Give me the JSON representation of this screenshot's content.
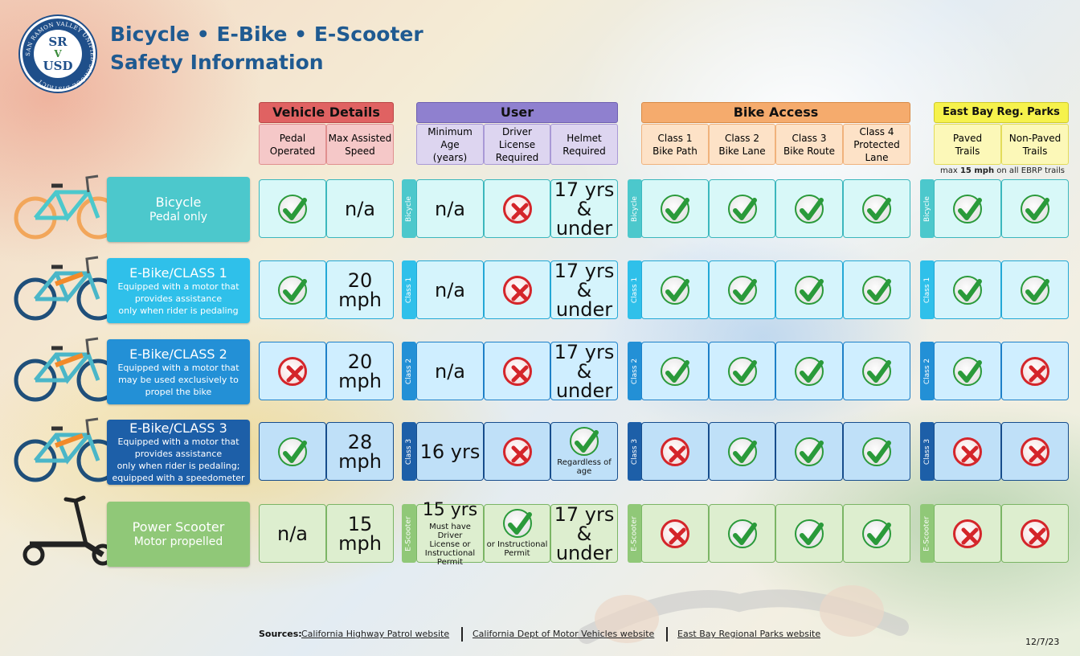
{
  "logo": {
    "line1": "SR",
    "line2": "V",
    "line3": "USD",
    "ring_text": "SAN RAMON VALLEY UNIFIED SCHOOL DISTRICT"
  },
  "title": {
    "line1": "Bicycle • E-Bike • E-Scooter",
    "line2": "Safety Information"
  },
  "groups": {
    "vehicle": {
      "label": "Vehicle Details",
      "color": "#e06060"
    },
    "user": {
      "label": "User",
      "color": "#8f7fcf"
    },
    "access": {
      "label": "Bike Access",
      "color": "#f5a86a"
    },
    "parks": {
      "label": "East Bay Reg. Parks Trails",
      "color": "#f5f04a"
    }
  },
  "subheads": {
    "pedal": "Pedal\nOperated",
    "speed": "Max Assisted\nSpeed",
    "age": "Minimum Age\n(years)",
    "license": "Driver License\nRequired",
    "helmet": "Helmet\nRequired",
    "c1": "Class 1\nBike Path",
    "c2": "Class 2\nBike Lane",
    "c3": "Class 3\nBike Route",
    "c4": "Class 4\nProtected Lane",
    "paved": "Paved\nTrails",
    "nonpaved": "Non-Paved\nTrails"
  },
  "parks_note": {
    "pre": "max ",
    "bold": "15 mph",
    "post": " on all EBRP trails"
  },
  "rows": [
    {
      "tag": "Bicycle",
      "title": "Bicycle",
      "desc": "Pedal only",
      "pedal": {
        "icon": "yes"
      },
      "speed": {
        "text": "n/a"
      },
      "age": {
        "text": "n/a"
      },
      "license": {
        "icon": "no"
      },
      "helmet": {
        "text": "17 yrs\n& under"
      },
      "c1": {
        "icon": "yes"
      },
      "c2": {
        "icon": "yes"
      },
      "c3": {
        "icon": "yes"
      },
      "c4": {
        "icon": "yes"
      },
      "paved": {
        "icon": "yes"
      },
      "nonpaved": {
        "icon": "yes"
      }
    },
    {
      "tag": "Class 1",
      "title": "E-Bike/CLASS 1",
      "desc": "Equipped with a motor that\nprovides assistance\nonly when rider is pedaling",
      "pedal": {
        "icon": "yes"
      },
      "speed": {
        "text": "20\nmph"
      },
      "age": {
        "text": "n/a"
      },
      "license": {
        "icon": "no"
      },
      "helmet": {
        "text": "17 yrs\n& under"
      },
      "c1": {
        "icon": "yes"
      },
      "c2": {
        "icon": "yes"
      },
      "c3": {
        "icon": "yes"
      },
      "c4": {
        "icon": "yes"
      },
      "paved": {
        "icon": "yes"
      },
      "nonpaved": {
        "icon": "yes"
      }
    },
    {
      "tag": "Class 2",
      "title": "E-Bike/CLASS 2",
      "desc": "Equipped with a motor that\nmay be used exclusively to\npropel the bike",
      "pedal": {
        "icon": "no"
      },
      "speed": {
        "text": "20\nmph"
      },
      "age": {
        "text": "n/a"
      },
      "license": {
        "icon": "no"
      },
      "helmet": {
        "text": "17 yrs\n& under"
      },
      "c1": {
        "icon": "yes"
      },
      "c2": {
        "icon": "yes"
      },
      "c3": {
        "icon": "yes"
      },
      "c4": {
        "icon": "yes"
      },
      "paved": {
        "icon": "yes"
      },
      "nonpaved": {
        "icon": "no"
      }
    },
    {
      "tag": "Class 3",
      "title": "E-Bike/CLASS 3",
      "desc": "Equipped with a motor that\nprovides assistance\nonly when rider is pedaling;\nequipped with a speedometer",
      "pedal": {
        "icon": "yes"
      },
      "speed": {
        "text": "28\nmph"
      },
      "age": {
        "text": "16 yrs"
      },
      "license": {
        "icon": "no"
      },
      "helmet": {
        "icon": "yes",
        "note": "Regardless of age"
      },
      "c1": {
        "icon": "no"
      },
      "c2": {
        "icon": "yes"
      },
      "c3": {
        "icon": "yes"
      },
      "c4": {
        "icon": "yes"
      },
      "paved": {
        "icon": "no"
      },
      "nonpaved": {
        "icon": "no"
      }
    },
    {
      "tag": "E-Scooter",
      "title": "Power Scooter",
      "desc": "Motor propelled",
      "pedal": {
        "text": "n/a"
      },
      "speed": {
        "text": "15\nmph"
      },
      "age": {
        "text": "15 yrs",
        "note": "Must have Driver\nLicense or\nInstructional\nPermit"
      },
      "license": {
        "icon": "yes",
        "note": "or Instructional\nPermit"
      },
      "helmet": {
        "text": "17 yrs\n& under"
      },
      "c1": {
        "icon": "no"
      },
      "c2": {
        "icon": "yes"
      },
      "c3": {
        "icon": "yes"
      },
      "c4": {
        "icon": "yes"
      },
      "paved": {
        "icon": "no"
      },
      "nonpaved": {
        "icon": "no"
      }
    }
  ],
  "row_colors": [
    {
      "label": "#4cc8cc",
      "cell": "#d8f8f8",
      "border": "#3cb7bd",
      "tag": "#4cc8cc"
    },
    {
      "label": "#2fc0ea",
      "cell": "#d5f4fc",
      "border": "#23a8d6",
      "tag": "#2fc0ea"
    },
    {
      "label": "#2390d6",
      "cell": "#cfeeff",
      "border": "#1e80c8",
      "tag": "#2390d6"
    },
    {
      "label": "#1d5fa8",
      "cell": "#bfe0f8",
      "border": "#174d8c",
      "tag": "#1d5fa8"
    },
    {
      "label": "#90c878",
      "cell": "#ddeecf",
      "border": "#7bb565",
      "tag": "#90c878"
    }
  ],
  "footer": {
    "sources_label": "Sources:",
    "link1": "California Highway Patrol website",
    "link2": "California Dept of Motor Vehicles website",
    "link3": "East Bay Regional Parks website",
    "date": "12/7/23"
  }
}
